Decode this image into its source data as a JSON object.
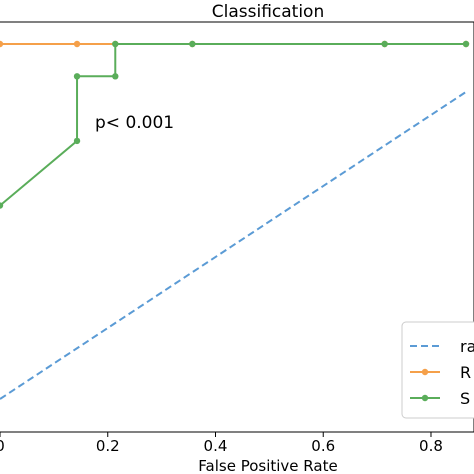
{
  "chart_data": {
    "type": "line",
    "title": "Classification",
    "xlabel": "False Positive Rate",
    "ylabel": "",
    "xlim": [
      0.0,
      0.865
    ],
    "ylim": [
      0.0,
      1.0
    ],
    "x_ticks": [
      "0",
      "0.2",
      "0.4",
      "0.6",
      "0.8"
    ],
    "x_tick_values": [
      0.0,
      0.2,
      0.4,
      0.6,
      0.8
    ],
    "annotation": "p< 0.001",
    "legend": {
      "location": "lower right",
      "entries": [
        "ra",
        "R",
        "S"
      ]
    },
    "series": [
      {
        "name": "ra",
        "color": "#5b9bd5",
        "style": "dashed",
        "x": [
          0.0,
          0.865
        ],
        "y": [
          0.0,
          0.865
        ]
      },
      {
        "name": "R",
        "color": "#f5a04a",
        "style": "solid-markers",
        "x": [
          0.0,
          0.143,
          0.214,
          0.357,
          0.714,
          0.865
        ],
        "y": [
          1.0,
          1.0,
          1.0,
          1.0,
          1.0,
          1.0
        ]
      },
      {
        "name": "S",
        "color": "#5aad5a",
        "style": "solid-markers",
        "x": [
          0.0,
          0.143,
          0.143,
          0.214,
          0.214,
          0.357,
          0.714,
          0.865
        ],
        "y": [
          0.545,
          0.727,
          0.909,
          0.909,
          1.0,
          1.0,
          1.0,
          1.0
        ]
      }
    ]
  }
}
